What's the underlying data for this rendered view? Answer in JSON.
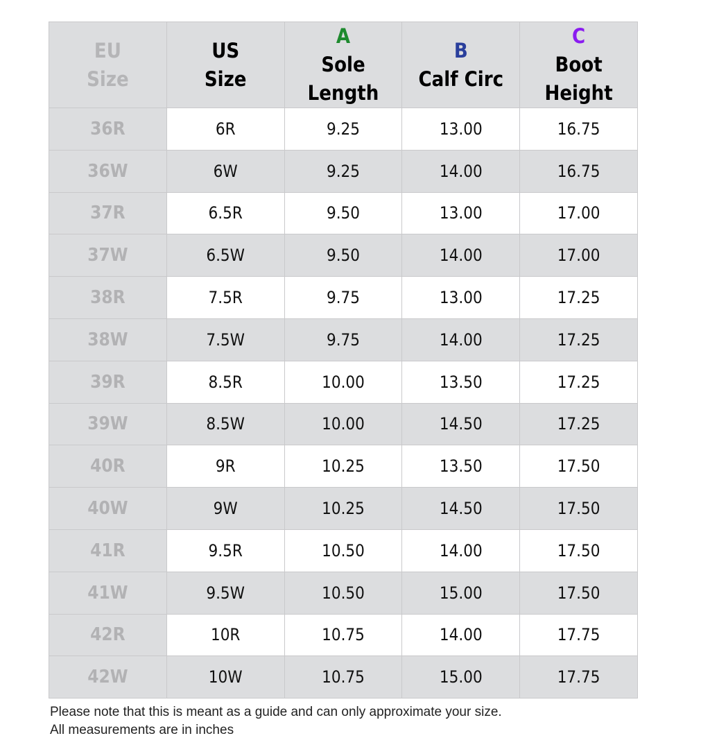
{
  "headers": [
    {
      "letter": "",
      "line1": "EU",
      "line2": "Size"
    },
    {
      "letter": "",
      "line1": "US",
      "line2": "Size"
    },
    {
      "letter": "A",
      "line1": "Sole",
      "line2": "Length"
    },
    {
      "letter": "B",
      "line1": "Calf Circ",
      "line2": ""
    },
    {
      "letter": "C",
      "line1": "Boot",
      "line2": "Height"
    }
  ],
  "colors": {
    "A": "#1e8a2e",
    "B": "#2a3f9c",
    "C": "#8a1cf0"
  },
  "rows": [
    [
      "36R",
      "6R",
      "9.25",
      "13.00",
      "16.75"
    ],
    [
      "36W",
      "6W",
      "9.25",
      "14.00",
      "16.75"
    ],
    [
      "37R",
      "6.5R",
      "9.50",
      "13.00",
      "17.00"
    ],
    [
      "37W",
      "6.5W",
      "9.50",
      "14.00",
      "17.00"
    ],
    [
      "38R",
      "7.5R",
      "9.75",
      "13.00",
      "17.25"
    ],
    [
      "38W",
      "7.5W",
      "9.75",
      "14.00",
      "17.25"
    ],
    [
      "39R",
      "8.5R",
      "10.00",
      "13.50",
      "17.25"
    ],
    [
      "39W",
      "8.5W",
      "10.00",
      "14.50",
      "17.25"
    ],
    [
      "40R",
      "9R",
      "10.25",
      "13.50",
      "17.50"
    ],
    [
      "40W",
      "9W",
      "10.25",
      "14.50",
      "17.50"
    ],
    [
      "41R",
      "9.5R",
      "10.50",
      "14.00",
      "17.50"
    ],
    [
      "41W",
      "9.5W",
      "10.50",
      "15.00",
      "17.50"
    ],
    [
      "42R",
      "10R",
      "10.75",
      "14.00",
      "17.75"
    ],
    [
      "42W",
      "10W",
      "10.75",
      "15.00",
      "17.75"
    ]
  ],
  "notes": [
    "Please note that this is meant as a guide and can only approximate your size.",
    "All measurements are in inches"
  ]
}
